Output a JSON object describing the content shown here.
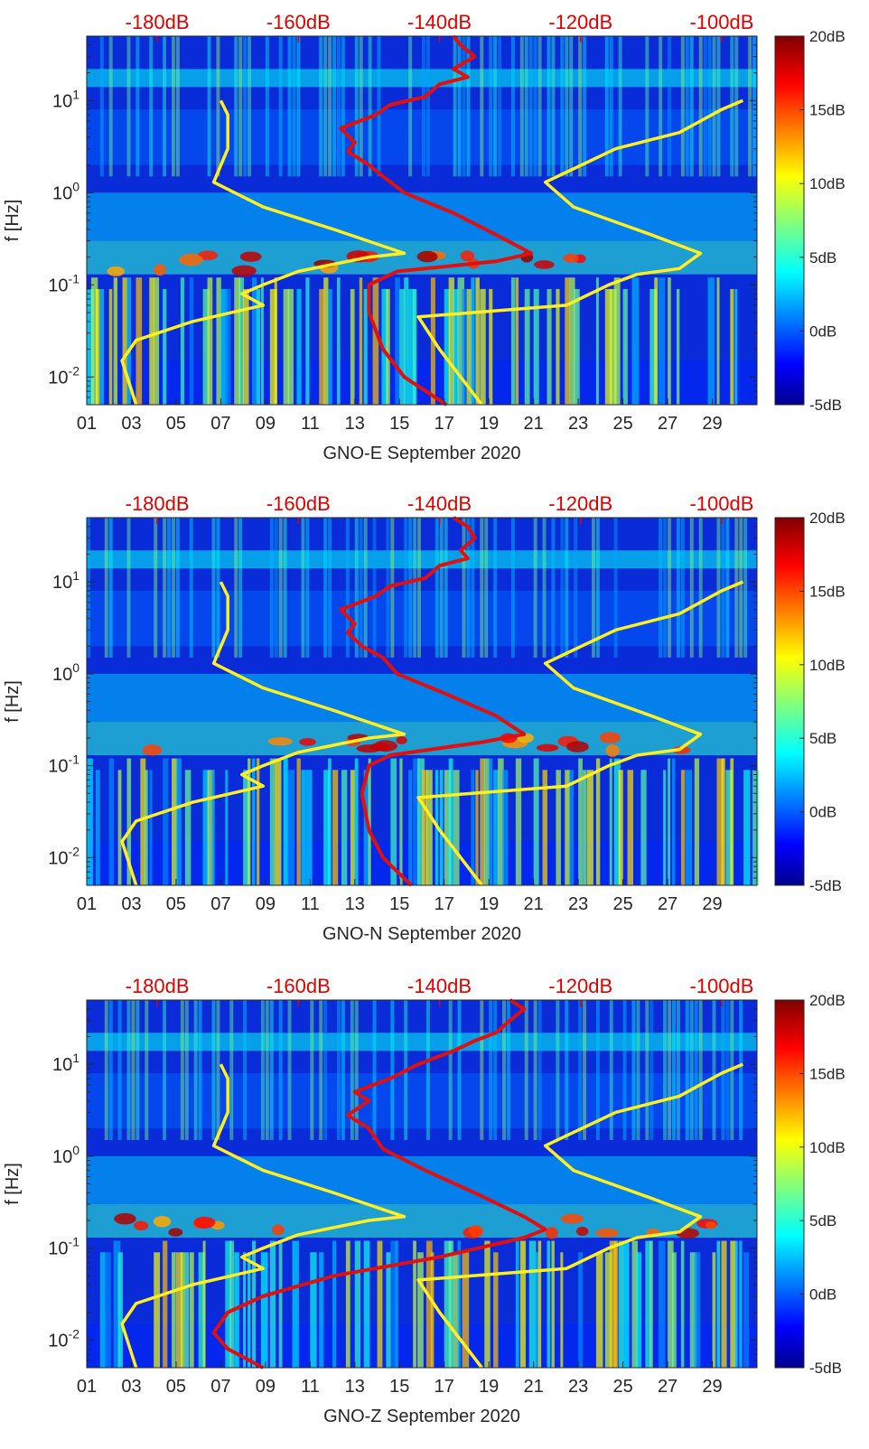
{
  "chart_data": [
    {
      "type": "heatmap",
      "title": "",
      "xlabel": "GNO-E September 2020",
      "ylabel": "f [Hz]",
      "x_ticks": [
        "01",
        "03",
        "05",
        "07",
        "09",
        "11",
        "13",
        "15",
        "17",
        "19",
        "21",
        "23",
        "25",
        "27",
        "29"
      ],
      "x_tick_values": [
        1,
        3,
        5,
        7,
        9,
        11,
        13,
        15,
        17,
        19,
        21,
        23,
        25,
        27,
        29
      ],
      "xlim": [
        1,
        31
      ],
      "y_scale": "log",
      "ylim": [
        0.005,
        50
      ],
      "y_ticks": [
        {
          "base": "10",
          "exp": "1",
          "value": 10
        },
        {
          "base": "10",
          "exp": "0",
          "value": 1
        },
        {
          "base": "10",
          "exp": "-1",
          "value": 0.1
        },
        {
          "base": "10",
          "exp": "-2",
          "value": 0.01
        }
      ],
      "top_axis": {
        "color": "#e00000",
        "labels": [
          "-180dB",
          "-160dB",
          "-140dB",
          "-120dB",
          "-100dB"
        ],
        "values": [
          -180,
          -160,
          -140,
          -120,
          -100
        ],
        "range": [
          -190,
          -95
        ]
      },
      "colorbar": {
        "ticks": [
          "20dB",
          "15dB",
          "10dB",
          "5dB",
          "0dB",
          "-5dB"
        ],
        "values": [
          20,
          15,
          10,
          5,
          0,
          -5
        ],
        "range": [
          -5,
          20
        ]
      },
      "series": [
        {
          "color": "#ffee22",
          "axis": "top",
          "points": [
            [
              -183,
              0.005
            ],
            [
              -185,
              0.015
            ],
            [
              -183,
              0.025
            ],
            [
              -175,
              0.04
            ],
            [
              -165,
              0.06
            ],
            [
              -168,
              0.08
            ],
            [
              -165,
              0.1
            ],
            [
              -160,
              0.14
            ],
            [
              -150,
              0.2
            ],
            [
              -145,
              0.22
            ],
            [
              -155,
              0.4
            ],
            [
              -165,
              0.7
            ],
            [
              -172,
              1.3
            ],
            [
              -170,
              3
            ],
            [
              -170,
              7
            ],
            [
              -171,
              10
            ]
          ]
        },
        {
          "color": "#ffee22",
          "axis": "top",
          "points": [
            [
              -134,
              0.005
            ],
            [
              -140,
              0.02
            ],
            [
              -143,
              0.045
            ],
            [
              -122,
              0.06
            ],
            [
              -116,
              0.1
            ],
            [
              -112,
              0.13
            ],
            [
              -106,
              0.15
            ],
            [
              -103,
              0.22
            ],
            [
              -110,
              0.35
            ],
            [
              -121,
              0.7
            ],
            [
              -125,
              1.3
            ],
            [
              -115,
              3
            ],
            [
              -106,
              4.5
            ],
            [
              -100,
              8
            ],
            [
              -97,
              10
            ]
          ]
        },
        {
          "color": "#e01010",
          "axis": "top",
          "points": [
            [
              -139,
              0.005
            ],
            [
              -145,
              0.01
            ],
            [
              -148,
              0.02
            ],
            [
              -150,
              0.05
            ],
            [
              -150,
              0.1
            ],
            [
              -146,
              0.14
            ],
            [
              -132,
              0.18
            ],
            [
              -127,
              0.22
            ],
            [
              -132,
              0.35
            ],
            [
              -138,
              0.6
            ],
            [
              -145,
              1
            ],
            [
              -148,
              1.5
            ],
            [
              -150,
              2
            ],
            [
              -153,
              2.8
            ],
            [
              -152,
              3.5
            ],
            [
              -154,
              5
            ],
            [
              -149,
              7
            ],
            [
              -147,
              9
            ],
            [
              -142,
              11
            ],
            [
              -140,
              15
            ],
            [
              -136,
              18
            ],
            [
              -138,
              22
            ],
            [
              -135,
              30
            ],
            [
              -137,
              40
            ],
            [
              -138,
              50
            ]
          ]
        }
      ]
    },
    {
      "type": "heatmap",
      "title": "",
      "xlabel": "GNO-N September 2020",
      "ylabel": "f [Hz]",
      "x_ticks": [
        "01",
        "03",
        "05",
        "07",
        "09",
        "11",
        "13",
        "15",
        "17",
        "19",
        "21",
        "23",
        "25",
        "27",
        "29"
      ],
      "x_tick_values": [
        1,
        3,
        5,
        7,
        9,
        11,
        13,
        15,
        17,
        19,
        21,
        23,
        25,
        27,
        29
      ],
      "xlim": [
        1,
        31
      ],
      "y_scale": "log",
      "ylim": [
        0.005,
        50
      ],
      "y_ticks": [
        {
          "base": "10",
          "exp": "1",
          "value": 10
        },
        {
          "base": "10",
          "exp": "0",
          "value": 1
        },
        {
          "base": "10",
          "exp": "-1",
          "value": 0.1
        },
        {
          "base": "10",
          "exp": "-2",
          "value": 0.01
        }
      ],
      "top_axis": {
        "color": "#e00000",
        "labels": [
          "-180dB",
          "-160dB",
          "-140dB",
          "-120dB",
          "-100dB"
        ],
        "values": [
          -180,
          -160,
          -140,
          -120,
          -100
        ],
        "range": [
          -190,
          -95
        ]
      },
      "colorbar": {
        "ticks": [
          "20dB",
          "15dB",
          "10dB",
          "5dB",
          "0dB",
          "-5dB"
        ],
        "values": [
          20,
          15,
          10,
          5,
          0,
          -5
        ],
        "range": [
          -5,
          20
        ]
      },
      "series": [
        {
          "color": "#ffee22",
          "axis": "top",
          "points": [
            [
              -183,
              0.005
            ],
            [
              -185,
              0.015
            ],
            [
              -183,
              0.025
            ],
            [
              -175,
              0.04
            ],
            [
              -165,
              0.06
            ],
            [
              -168,
              0.08
            ],
            [
              -165,
              0.1
            ],
            [
              -160,
              0.14
            ],
            [
              -150,
              0.2
            ],
            [
              -145,
              0.22
            ],
            [
              -155,
              0.4
            ],
            [
              -165,
              0.7
            ],
            [
              -172,
              1.3
            ],
            [
              -170,
              3
            ],
            [
              -170,
              7
            ],
            [
              -171,
              10
            ]
          ]
        },
        {
          "color": "#ffee22",
          "axis": "top",
          "points": [
            [
              -134,
              0.005
            ],
            [
              -140,
              0.02
            ],
            [
              -143,
              0.045
            ],
            [
              -122,
              0.06
            ],
            [
              -116,
              0.1
            ],
            [
              -112,
              0.13
            ],
            [
              -106,
              0.15
            ],
            [
              -103,
              0.22
            ],
            [
              -110,
              0.35
            ],
            [
              -121,
              0.7
            ],
            [
              -125,
              1.3
            ],
            [
              -115,
              3
            ],
            [
              -106,
              4.5
            ],
            [
              -100,
              8
            ],
            [
              -97,
              10
            ]
          ]
        },
        {
          "color": "#e01010",
          "axis": "top",
          "points": [
            [
              -144,
              0.005
            ],
            [
              -148,
              0.01
            ],
            [
              -150,
              0.02
            ],
            [
              -151,
              0.05
            ],
            [
              -150,
              0.1
            ],
            [
              -147,
              0.13
            ],
            [
              -134,
              0.18
            ],
            [
              -128,
              0.22
            ],
            [
              -132,
              0.35
            ],
            [
              -139,
              0.6
            ],
            [
              -146,
              1
            ],
            [
              -148,
              1.5
            ],
            [
              -151,
              2
            ],
            [
              -153,
              2.8
            ],
            [
              -152,
              3.5
            ],
            [
              -154,
              5
            ],
            [
              -149,
              7
            ],
            [
              -147,
              9
            ],
            [
              -142,
              11
            ],
            [
              -140,
              15
            ],
            [
              -136,
              18
            ],
            [
              -137,
              22
            ],
            [
              -135,
              30
            ],
            [
              -136,
              40
            ],
            [
              -138,
              50
            ]
          ]
        }
      ]
    },
    {
      "type": "heatmap",
      "title": "",
      "xlabel": "GNO-Z September 2020",
      "ylabel": "f [Hz]",
      "x_ticks": [
        "01",
        "03",
        "05",
        "07",
        "09",
        "11",
        "13",
        "15",
        "17",
        "19",
        "21",
        "23",
        "25",
        "27",
        "29"
      ],
      "x_tick_values": [
        1,
        3,
        5,
        7,
        9,
        11,
        13,
        15,
        17,
        19,
        21,
        23,
        25,
        27,
        29
      ],
      "xlim": [
        1,
        31
      ],
      "y_scale": "log",
      "ylim": [
        0.005,
        50
      ],
      "y_ticks": [
        {
          "base": "10",
          "exp": "1",
          "value": 10
        },
        {
          "base": "10",
          "exp": "0",
          "value": 1
        },
        {
          "base": "10",
          "exp": "-1",
          "value": 0.1
        },
        {
          "base": "10",
          "exp": "-2",
          "value": 0.01
        }
      ],
      "top_axis": {
        "color": "#e00000",
        "labels": [
          "-180dB",
          "-160dB",
          "-140dB",
          "-120dB",
          "-100dB"
        ],
        "values": [
          -180,
          -160,
          -140,
          -120,
          -100
        ],
        "range": [
          -190,
          -95
        ]
      },
      "colorbar": {
        "ticks": [
          "20dB",
          "15dB",
          "10dB",
          "5dB",
          "0dB",
          "-5dB"
        ],
        "values": [
          20,
          15,
          10,
          5,
          0,
          -5
        ],
        "range": [
          -5,
          20
        ]
      },
      "series": [
        {
          "color": "#ffee22",
          "axis": "top",
          "points": [
            [
              -183,
              0.005
            ],
            [
              -185,
              0.015
            ],
            [
              -183,
              0.025
            ],
            [
              -175,
              0.04
            ],
            [
              -165,
              0.06
            ],
            [
              -168,
              0.08
            ],
            [
              -165,
              0.1
            ],
            [
              -160,
              0.14
            ],
            [
              -150,
              0.2
            ],
            [
              -145,
              0.22
            ],
            [
              -155,
              0.4
            ],
            [
              -165,
              0.7
            ],
            [
              -172,
              1.3
            ],
            [
              -170,
              3
            ],
            [
              -170,
              7
            ],
            [
              -171,
              10
            ]
          ]
        },
        {
          "color": "#ffee22",
          "axis": "top",
          "points": [
            [
              -134,
              0.005
            ],
            [
              -140,
              0.02
            ],
            [
              -143,
              0.045
            ],
            [
              -122,
              0.06
            ],
            [
              -116,
              0.1
            ],
            [
              -112,
              0.13
            ],
            [
              -106,
              0.15
            ],
            [
              -103,
              0.22
            ],
            [
              -110,
              0.35
            ],
            [
              -121,
              0.7
            ],
            [
              -125,
              1.3
            ],
            [
              -115,
              3
            ],
            [
              -106,
              4.5
            ],
            [
              -100,
              8
            ],
            [
              -97,
              10
            ]
          ]
        },
        {
          "color": "#e01010",
          "axis": "top",
          "points": [
            [
              -165,
              0.005
            ],
            [
              -170,
              0.008
            ],
            [
              -172,
              0.012
            ],
            [
              -170,
              0.02
            ],
            [
              -165,
              0.03
            ],
            [
              -155,
              0.05
            ],
            [
              -140,
              0.08
            ],
            [
              -128,
              0.13
            ],
            [
              -125,
              0.16
            ],
            [
              -128,
              0.22
            ],
            [
              -135,
              0.4
            ],
            [
              -142,
              0.7
            ],
            [
              -148,
              1.2
            ],
            [
              -150,
              2
            ],
            [
              -153,
              2.8
            ],
            [
              -150,
              4
            ],
            [
              -152,
              5
            ],
            [
              -147,
              7
            ],
            [
              -143,
              10
            ],
            [
              -138,
              14
            ],
            [
              -135,
              18
            ],
            [
              -132,
              22
            ],
            [
              -130,
              30
            ],
            [
              -128,
              40
            ],
            [
              -130,
              50
            ]
          ]
        }
      ]
    }
  ]
}
